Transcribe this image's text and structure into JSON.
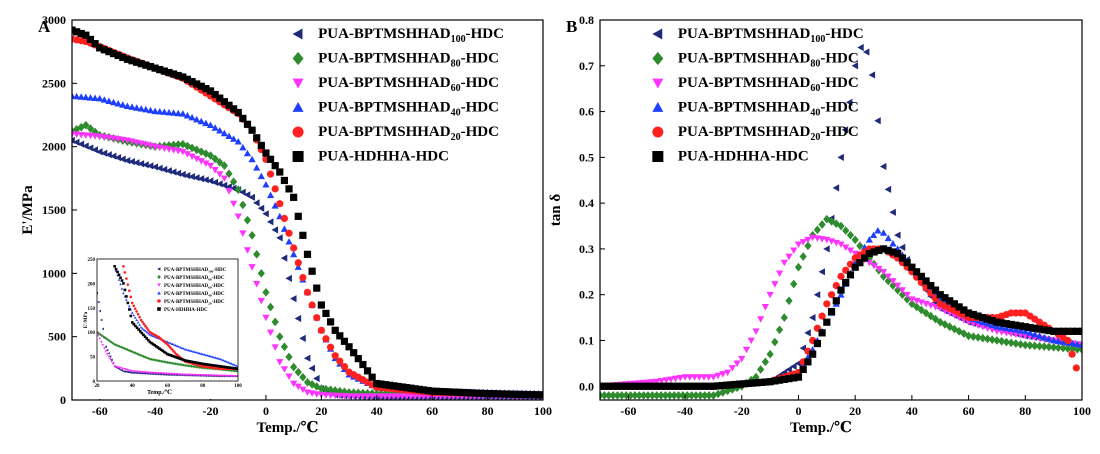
{
  "chart_data": [
    {
      "panel_label": "A",
      "type": "scatter",
      "xlabel": "Temp./℃",
      "ylabel": "E'/MPa",
      "xlim": [
        -70,
        100
      ],
      "ylim": [
        0,
        3000
      ],
      "xticks": [
        -60,
        -40,
        -20,
        0,
        20,
        40,
        60,
        80,
        100
      ],
      "yticks": [
        0,
        500,
        1000,
        1500,
        2000,
        2500,
        3000
      ],
      "legend_position": "top-right",
      "series": [
        {
          "name": "PUA-BPTMSHHAD100-HDC",
          "legend_base": "PUA-BPTMSHHAD",
          "legend_sub": "100",
          "legend_tail": "-HDC",
          "marker": "triangle-left",
          "color": "#1f2a7a",
          "x": [
            -70,
            -60,
            -50,
            -40,
            -30,
            -20,
            -10,
            -5,
            0,
            5,
            10,
            15,
            20,
            25,
            30,
            40,
            60,
            80,
            100
          ],
          "y": [
            2050,
            1960,
            1890,
            1840,
            1780,
            1730,
            1660,
            1600,
            1470,
            1280,
            800,
            330,
            90,
            40,
            30,
            20,
            20,
            20,
            20
          ]
        },
        {
          "name": "PUA-BPTMSHHAD80-HDC",
          "legend_base": "PUA-BPTMSHHAD",
          "legend_sub": "80",
          "legend_tail": "-HDC",
          "marker": "diamond",
          "color": "#2e8b2e",
          "x": [
            -70,
            -65,
            -60,
            -50,
            -40,
            -30,
            -20,
            -15,
            -10,
            -5,
            0,
            5,
            10,
            15,
            20,
            30,
            40,
            60,
            80,
            100
          ],
          "y": [
            2120,
            2170,
            2090,
            2040,
            2000,
            2020,
            1930,
            1850,
            1660,
            1300,
            850,
            500,
            260,
            140,
            90,
            60,
            50,
            45,
            40,
            40
          ]
        },
        {
          "name": "PUA-BPTMSHHAD60-HDC",
          "legend_base": "PUA-BPTMSHHAD",
          "legend_sub": "60",
          "legend_tail": "-HDC",
          "marker": "triangle-down",
          "color": "#ff33ff",
          "x": [
            -70,
            -60,
            -50,
            -40,
            -30,
            -20,
            -15,
            -10,
            -5,
            0,
            5,
            10,
            15,
            20,
            30,
            40,
            60,
            80,
            100
          ],
          "y": [
            2100,
            2080,
            2050,
            2000,
            1960,
            1850,
            1750,
            1450,
            1050,
            650,
            300,
            130,
            60,
            40,
            30,
            30,
            30,
            30,
            30
          ]
        },
        {
          "name": "PUA-BPTMSHHAD40-HDC",
          "legend_base": "PUA-BPTMSHHAD",
          "legend_sub": "40",
          "legend_tail": "-HDC",
          "marker": "triangle-up",
          "color": "#1f3fff",
          "x": [
            -70,
            -60,
            -50,
            -40,
            -30,
            -20,
            -10,
            -5,
            0,
            5,
            10,
            15,
            20,
            25,
            30,
            40,
            50,
            60,
            80,
            100
          ],
          "y": [
            2400,
            2380,
            2320,
            2280,
            2260,
            2170,
            2040,
            1900,
            1700,
            1450,
            1150,
            850,
            550,
            330,
            200,
            100,
            80,
            70,
            60,
            50
          ]
        },
        {
          "name": "PUA-BPTMSHHAD20-HDC",
          "legend_base": "PUA-BPTMSHHAD",
          "legend_sub": "20",
          "legend_tail": "-HDC",
          "marker": "circle",
          "color": "#ff2020",
          "x": [
            -70,
            -65,
            -60,
            -50,
            -40,
            -30,
            -20,
            -10,
            -5,
            0,
            5,
            10,
            15,
            20,
            25,
            30,
            40,
            60,
            80,
            100
          ],
          "y": [
            2850,
            2830,
            2790,
            2700,
            2620,
            2540,
            2400,
            2260,
            2130,
            1900,
            1550,
            1200,
            850,
            550,
            350,
            220,
            100,
            60,
            50,
            40
          ]
        },
        {
          "name": "PUA-HDHHA-HDC",
          "legend_base": "PUA-HDHHA-HDC",
          "legend_sub": "",
          "legend_tail": "",
          "marker": "square",
          "color": "#000000",
          "x": [
            -70,
            -65,
            -60,
            -50,
            -40,
            -30,
            -20,
            -10,
            -5,
            0,
            5,
            10,
            15,
            20,
            25,
            30,
            35,
            40,
            60,
            80,
            100
          ],
          "y": [
            2920,
            2880,
            2780,
            2690,
            2620,
            2550,
            2440,
            2270,
            2130,
            1950,
            1800,
            1600,
            1150,
            750,
            550,
            420,
            280,
            130,
            70,
            50,
            40
          ]
        }
      ],
      "inset": {
        "ylabel": "E'/MPa",
        "xlabel": "Temp./℃",
        "ylim": [
          0,
          250
        ],
        "xlim": [
          20,
          100
        ],
        "yticks": [
          0,
          50,
          100,
          150,
          200,
          250
        ],
        "xticks": [
          20,
          40,
          60,
          80,
          100
        ],
        "series": [
          {
            "x": [
              20,
              25,
              30,
              35,
              40,
              50,
              60,
              70,
              80,
              90,
              100
            ],
            "y": [
              180,
              70,
              30,
              20,
              17,
              15,
              13,
              12,
              11,
              10,
              10
            ]
          },
          {
            "x": [
              20,
              30,
              40,
              50,
              60,
              70,
              80,
              90,
              100
            ],
            "y": [
              100,
              75,
              60,
              45,
              38,
              32,
              27,
              24,
              20
            ]
          },
          {
            "x": [
              20,
              25,
              30,
              40,
              50,
              60,
              70,
              80,
              90,
              100
            ],
            "y": [
              100,
              60,
              30,
              20,
              17,
              15,
              13,
              12,
              11,
              10
            ]
          },
          {
            "x": [
              30,
              35,
              40,
              45,
              50,
              60,
              70,
              80,
              90,
              100
            ],
            "y": [
              235,
              180,
              140,
              110,
              95,
              80,
              65,
              55,
              45,
              30
            ]
          },
          {
            "x": [
              35,
              40,
              45,
              50,
              55,
              60,
              65,
              70,
              80,
              90,
              100
            ],
            "y": [
              235,
              160,
              125,
              100,
              90,
              75,
              55,
              40,
              30,
              25,
              25
            ]
          },
          {
            "x": [
              30,
              35,
              40,
              50,
              60,
              70,
              80,
              90,
              100
            ],
            "y": [
              235,
              200,
              120,
              80,
              55,
              42,
              35,
              30,
              25
            ]
          }
        ]
      }
    },
    {
      "panel_label": "B",
      "type": "scatter",
      "xlabel": "Temp./℃",
      "ylabel": "tan δ",
      "xlim": [
        -70,
        100
      ],
      "ylim": [
        -0.03,
        0.8
      ],
      "xticks": [
        -60,
        -40,
        -20,
        0,
        20,
        40,
        60,
        80,
        100
      ],
      "yticks": [
        0.0,
        0.1,
        0.2,
        0.3,
        0.4,
        0.5,
        0.6,
        0.7,
        0.8
      ],
      "legend_position": "top-left",
      "series": [
        {
          "name": "PUA-BPTMSHHAD100-HDC",
          "legend_base": "PUA-BPTMSHHAD",
          "legend_sub": "100",
          "legend_tail": "-HDC",
          "marker": "triangle-left",
          "color": "#1f2a7a",
          "x": [
            -70,
            -50,
            -30,
            -10,
            0,
            5,
            10,
            15,
            18,
            20,
            22,
            24,
            26,
            28,
            30,
            35,
            40,
            50,
            60,
            80,
            100
          ],
          "y": [
            0.0,
            0.0,
            0.0,
            0.01,
            0.05,
            0.15,
            0.3,
            0.5,
            0.62,
            0.7,
            0.74,
            0.73,
            0.68,
            0.58,
            0.48,
            0.33,
            0.25,
            0.17,
            0.14,
            0.11,
            0.09
          ]
        },
        {
          "name": "PUA-BPTMSHHAD80-HDC",
          "legend_base": "PUA-BPTMSHHAD",
          "legend_sub": "80",
          "legend_tail": "-HDC",
          "marker": "diamond",
          "color": "#2e8b2e",
          "x": [
            -70,
            -50,
            -30,
            -20,
            -15,
            -10,
            -5,
            0,
            5,
            10,
            15,
            20,
            25,
            30,
            40,
            50,
            60,
            70,
            80,
            90,
            100
          ],
          "y": [
            -0.02,
            -0.02,
            -0.02,
            0.0,
            0.02,
            0.07,
            0.15,
            0.26,
            0.33,
            0.365,
            0.35,
            0.32,
            0.28,
            0.24,
            0.18,
            0.14,
            0.11,
            0.1,
            0.09,
            0.085,
            0.08
          ]
        },
        {
          "name": "PUA-BPTMSHHAD60-HDC",
          "legend_base": "PUA-BPTMSHHAD",
          "legend_sub": "60",
          "legend_tail": "-HDC",
          "marker": "triangle-down",
          "color": "#ff33ff",
          "x": [
            -70,
            -50,
            -40,
            -30,
            -25,
            -20,
            -15,
            -10,
            -5,
            0,
            5,
            10,
            15,
            20,
            30,
            40,
            50,
            60,
            70,
            80,
            90,
            100
          ],
          "y": [
            0.0,
            0.01,
            0.02,
            0.02,
            0.03,
            0.06,
            0.12,
            0.2,
            0.27,
            0.31,
            0.325,
            0.32,
            0.31,
            0.29,
            0.25,
            0.19,
            0.17,
            0.14,
            0.12,
            0.11,
            0.1,
            0.09
          ]
        },
        {
          "name": "PUA-BPTMSHHAD40-HDC",
          "legend_base": "PUA-BPTMSHHAD",
          "legend_sub": "40",
          "legend_tail": "-HDC",
          "marker": "triangle-up",
          "color": "#1f3fff",
          "x": [
            -70,
            -50,
            -30,
            -10,
            0,
            5,
            10,
            15,
            20,
            25,
            28,
            30,
            35,
            40,
            50,
            60,
            70,
            80,
            90,
            100
          ],
          "y": [
            0.0,
            0.0,
            0.0,
            0.01,
            0.03,
            0.08,
            0.14,
            0.2,
            0.27,
            0.32,
            0.34,
            0.335,
            0.3,
            0.26,
            0.19,
            0.15,
            0.13,
            0.12,
            0.1,
            0.09
          ]
        },
        {
          "name": "PUA-BPTMSHHAD20-HDC",
          "legend_base": "PUA-BPTMSHHAD",
          "legend_sub": "20",
          "legend_tail": "-HDC",
          "marker": "circle",
          "color": "#ff2020",
          "x": [
            -70,
            -50,
            -30,
            -10,
            0,
            5,
            10,
            15,
            20,
            25,
            30,
            35,
            40,
            50,
            60,
            70,
            75,
            80,
            85,
            90,
            95,
            98
          ],
          "y": [
            0.0,
            0.0,
            0.0,
            0.01,
            0.03,
            0.1,
            0.18,
            0.24,
            0.28,
            0.3,
            0.3,
            0.28,
            0.25,
            0.18,
            0.15,
            0.15,
            0.16,
            0.16,
            0.14,
            0.12,
            0.1,
            0.04
          ]
        },
        {
          "name": "PUA-HDHHA-HDC",
          "legend_base": "PUA-HDHHA-HDC",
          "legend_sub": "",
          "legend_tail": "",
          "marker": "square",
          "color": "#000000",
          "x": [
            -70,
            -50,
            -30,
            -10,
            0,
            5,
            10,
            15,
            20,
            25,
            30,
            35,
            40,
            50,
            60,
            70,
            80,
            90,
            95,
            100
          ],
          "y": [
            0.0,
            0.0,
            0.0,
            0.01,
            0.02,
            0.07,
            0.14,
            0.21,
            0.26,
            0.29,
            0.3,
            0.29,
            0.26,
            0.2,
            0.16,
            0.14,
            0.13,
            0.12,
            0.12,
            0.12
          ]
        }
      ]
    }
  ]
}
